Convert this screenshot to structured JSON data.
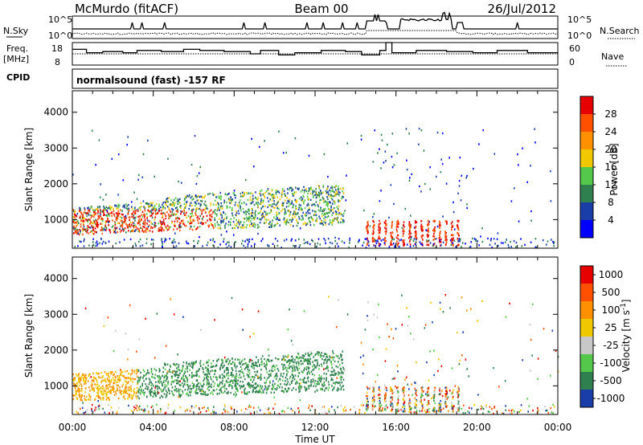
{
  "header": {
    "station": "McMurdo (fitACF)",
    "beam": "Beam 00",
    "date": "26/Jul/2012"
  },
  "noise_panel": {
    "left_label": "N.Sky",
    "right_label": "N.Search",
    "left_ticks": [
      "10^5",
      "10^0"
    ],
    "right_ticks": [
      "10^5",
      "10^0"
    ]
  },
  "freq_panel": {
    "left_label_1": "Freq.",
    "left_label_2": "[MHz]",
    "left_ticks": [
      "18",
      "8"
    ],
    "right_label": "Nave",
    "right_ticks": [
      "60",
      "0"
    ]
  },
  "cpid_panel": {
    "label": "CPID",
    "text": "normalsound (fast) -157 RF"
  },
  "colors": {
    "power": [
      "#0000ff",
      "#1a3ea8",
      "#2f7f4f",
      "#53c84a",
      "#f0c800",
      "#ff9000",
      "#ff5000",
      "#e60000"
    ],
    "velocity": [
      "#e60000",
      "#ff5000",
      "#ff9000",
      "#f0c800",
      "#c8c8c8",
      "#53c84a",
      "#2f7f4f",
      "#1a3ea8"
    ]
  },
  "chart_data": [
    {
      "type": "heatmap",
      "panel": "power",
      "ylabel": "Slant Range [km]",
      "yticks": [
        "1000",
        "2000",
        "3000",
        "4000"
      ],
      "ylim": [
        200,
        4600
      ],
      "xticks": [
        "00:00",
        "04:00",
        "08:00",
        "12:00",
        "16:00",
        "20:00",
        "00:00"
      ],
      "xlim_hours": [
        0,
        24
      ],
      "colorbar": {
        "label": "Power [dB]",
        "ticks": [
          "4",
          "8",
          "12",
          "16",
          "20",
          "24",
          "28"
        ],
        "range": [
          0,
          32
        ]
      }
    },
    {
      "type": "heatmap",
      "panel": "velocity",
      "ylabel": "Slant Range [km]",
      "yticks": [
        "1000",
        "2000",
        "3000",
        "4000"
      ],
      "ylim": [
        200,
        4600
      ],
      "xticks": [
        "00:00",
        "04:00",
        "08:00",
        "12:00",
        "16:00",
        "20:00",
        "00:00"
      ],
      "xlim_hours": [
        0,
        24
      ],
      "xlabel": "Time UT",
      "colorbar": {
        "label": "Velocity [m s^-1]",
        "ticks": [
          "1000",
          "500",
          "100",
          "25",
          "-25",
          "-100",
          "-500",
          "-1000"
        ]
      }
    }
  ]
}
